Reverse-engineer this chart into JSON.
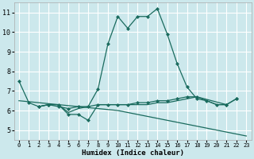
{
  "title": "",
  "xlabel": "Humidex (Indice chaleur)",
  "bg_color": "#cce8ec",
  "grid_color": "#ffffff",
  "line_color": "#1a6b5e",
  "xlim": [
    -0.5,
    23.5
  ],
  "ylim": [
    4.5,
    11.5
  ],
  "yticks": [
    5,
    6,
    7,
    8,
    9,
    10,
    11
  ],
  "xticks": [
    0,
    1,
    2,
    3,
    4,
    5,
    6,
    7,
    8,
    9,
    10,
    11,
    12,
    13,
    14,
    15,
    16,
    17,
    18,
    19,
    20,
    21,
    22,
    23
  ],
  "lines": [
    {
      "x": [
        0,
        1,
        2,
        3,
        4,
        5,
        6,
        7,
        8,
        9,
        10,
        11,
        12,
        13,
        14,
        15,
        16,
        17,
        18,
        19,
        20,
        21,
        22
      ],
      "y": [
        7.5,
        6.4,
        6.2,
        6.3,
        6.2,
        6.1,
        6.2,
        6.2,
        7.1,
        9.4,
        10.8,
        10.2,
        10.8,
        10.8,
        11.2,
        9.9,
        8.4,
        7.2,
        6.6,
        6.5,
        6.3,
        6.3,
        6.6
      ],
      "marker": true
    },
    {
      "x": [
        2,
        3,
        4,
        5,
        6,
        7,
        8,
        9,
        10,
        11,
        12,
        13,
        14,
        15,
        16,
        17,
        18,
        21,
        22
      ],
      "y": [
        6.2,
        6.3,
        6.3,
        5.8,
        5.8,
        5.5,
        6.3,
        6.3,
        6.3,
        6.3,
        6.4,
        6.4,
        6.5,
        6.5,
        6.6,
        6.7,
        6.7,
        6.3,
        6.6
      ],
      "marker": true
    },
    {
      "x": [
        2,
        3,
        4,
        5,
        6,
        7,
        8,
        9,
        10,
        11,
        12,
        13,
        14,
        15,
        16,
        17,
        18,
        19,
        20,
        21
      ],
      "y": [
        6.2,
        6.3,
        6.3,
        5.9,
        6.1,
        6.2,
        6.3,
        6.3,
        6.3,
        6.3,
        6.3,
        6.3,
        6.4,
        6.4,
        6.5,
        6.6,
        6.7,
        6.5,
        6.3,
        6.3
      ],
      "marker": false
    },
    {
      "x": [
        0,
        1,
        2,
        3,
        4,
        5,
        6,
        7,
        8,
        9,
        10,
        11,
        12,
        13,
        14,
        15,
        16,
        17,
        18,
        19,
        20,
        21,
        22,
        23
      ],
      "y": [
        6.5,
        6.45,
        6.4,
        6.35,
        6.3,
        6.25,
        6.2,
        6.15,
        6.1,
        6.05,
        6.0,
        5.9,
        5.8,
        5.7,
        5.6,
        5.5,
        5.4,
        5.3,
        5.2,
        5.1,
        5.0,
        4.9,
        4.8,
        4.7
      ],
      "marker": false
    }
  ]
}
